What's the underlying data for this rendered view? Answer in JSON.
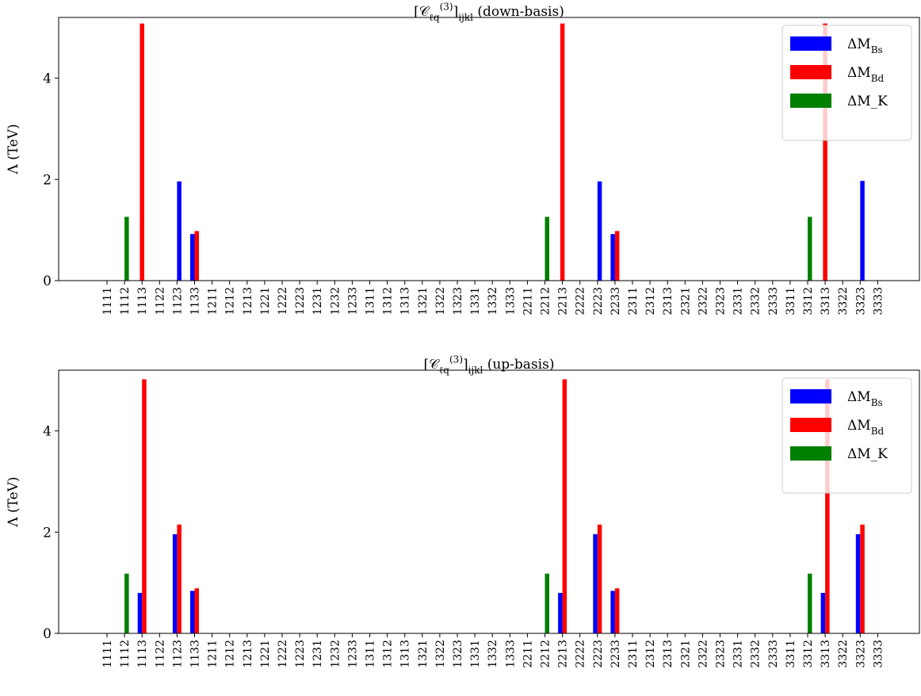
{
  "chart_data": [
    {
      "type": "bar",
      "title": "[C_{ℓq}^{(3)}]_{ijkl} (down-basis)",
      "ylabel": "Λ (TeV)",
      "ylim": [
        0,
        5.2
      ],
      "yticks": [
        "0",
        "2",
        "4"
      ],
      "legend_position": "upper-right",
      "categories": [
        "1111",
        "1112",
        "1113",
        "1122",
        "1123",
        "1133",
        "1211",
        "1212",
        "1213",
        "1221",
        "1222",
        "1223",
        "1231",
        "1232",
        "1233",
        "1311",
        "1312",
        "1313",
        "1321",
        "1322",
        "1323",
        "1331",
        "1332",
        "1333",
        "2211",
        "2212",
        "2213",
        "2222",
        "2223",
        "2233",
        "2311",
        "2312",
        "2313",
        "2321",
        "2322",
        "2323",
        "2331",
        "2332",
        "2333",
        "3311",
        "3312",
        "3313",
        "3322",
        "3323",
        "3333"
      ],
      "series": [
        {
          "name": "ΔM_{B_s}",
          "color": "#0000ff",
          "values": [
            0,
            0,
            0,
            0,
            1.96,
            0.92,
            0,
            0,
            0,
            0,
            0,
            0,
            0,
            0,
            0,
            0,
            0,
            0,
            0,
            0,
            0,
            0,
            0,
            0,
            0,
            0,
            0,
            0,
            1.96,
            0.92,
            0,
            0,
            0,
            0,
            0,
            0,
            0,
            0,
            0,
            0,
            0,
            0,
            0,
            1.97,
            0
          ]
        },
        {
          "name": "ΔM_{B_d}",
          "color": "#ff0000",
          "values": [
            0,
            0,
            5.08,
            0,
            0,
            0.98,
            0,
            0,
            0,
            0,
            0,
            0,
            0,
            0,
            0,
            0,
            0,
            0,
            0,
            0,
            0,
            0,
            0,
            0,
            0,
            0,
            5.08,
            0,
            0,
            0.98,
            0,
            0,
            0,
            0,
            0,
            0,
            0,
            0,
            0,
            0,
            0,
            5.08,
            0,
            0,
            0
          ]
        },
        {
          "name": "ΔM_K",
          "color": "#008000",
          "values": [
            0,
            1.26,
            0,
            0,
            0,
            0,
            0,
            0,
            0,
            0,
            0,
            0,
            0,
            0,
            0,
            0,
            0,
            0,
            0,
            0,
            0,
            0,
            0,
            0,
            0,
            1.26,
            0,
            0,
            0,
            0,
            0,
            0,
            0,
            0,
            0,
            0,
            0,
            0,
            0,
            0,
            1.26,
            0,
            0,
            0,
            0
          ]
        }
      ]
    },
    {
      "type": "bar",
      "title": "[C_{ℓq}^{(3)}]_{ijkl} (up-basis)",
      "ylabel": "Λ (TeV)",
      "ylim": [
        0,
        5.2
      ],
      "yticks": [
        "0",
        "2",
        "4"
      ],
      "legend_position": "upper-right",
      "categories": [
        "1111",
        "1112",
        "1113",
        "1122",
        "1123",
        "1133",
        "1211",
        "1212",
        "1213",
        "1221",
        "1222",
        "1223",
        "1231",
        "1232",
        "1233",
        "1311",
        "1312",
        "1313",
        "1321",
        "1322",
        "1323",
        "1331",
        "1332",
        "1333",
        "2211",
        "2212",
        "2213",
        "2222",
        "2223",
        "2233",
        "2311",
        "2312",
        "2313",
        "2321",
        "2322",
        "2323",
        "2331",
        "2332",
        "2333",
        "3311",
        "3312",
        "3313",
        "3322",
        "3323",
        "3333"
      ],
      "series": [
        {
          "name": "ΔM_{B_s}",
          "color": "#0000ff",
          "values": [
            0,
            0,
            0.8,
            0,
            1.96,
            0.84,
            0,
            0,
            0,
            0,
            0,
            0,
            0,
            0,
            0,
            0,
            0,
            0,
            0,
            0,
            0,
            0,
            0,
            0,
            0,
            0,
            0.8,
            0,
            1.96,
            0.84,
            0,
            0,
            0,
            0,
            0,
            0,
            0,
            0,
            0,
            0,
            0,
            0.8,
            0,
            1.96,
            0
          ]
        },
        {
          "name": "ΔM_{B_d}",
          "color": "#ff0000",
          "values": [
            0,
            0,
            5.02,
            0,
            2.15,
            0.89,
            0,
            0,
            0,
            0,
            0,
            0,
            0,
            0,
            0,
            0,
            0,
            0,
            0,
            0,
            0,
            0,
            0,
            0,
            0,
            0,
            5.02,
            0,
            2.15,
            0.89,
            0,
            0,
            0,
            0,
            0,
            0,
            0,
            0,
            0,
            0,
            0,
            5.02,
            0,
            2.15,
            0
          ]
        },
        {
          "name": "ΔM_K",
          "color": "#008000",
          "values": [
            0,
            1.18,
            0,
            0,
            0,
            0,
            0,
            0,
            0,
            0,
            0,
            0,
            0,
            0,
            0,
            0,
            0,
            0,
            0,
            0,
            0,
            0,
            0,
            0,
            0,
            1.18,
            0,
            0,
            0,
            0,
            0,
            0,
            0,
            0,
            0,
            0,
            0,
            0,
            0,
            0,
            1.18,
            0,
            0,
            0,
            0
          ]
        }
      ]
    }
  ]
}
